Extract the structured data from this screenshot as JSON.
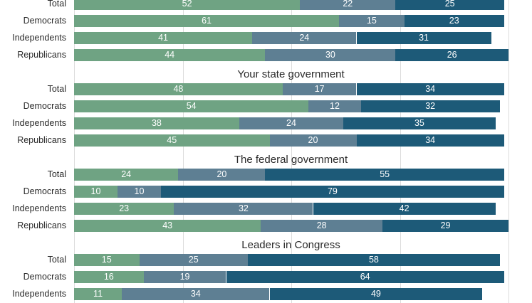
{
  "chart_data": {
    "type": "bar",
    "orientation": "horizontal",
    "stacked": true,
    "xlim": [
      0,
      100
    ],
    "grid": true,
    "series_colors": [
      "#6fa383",
      "#5e7f93",
      "#1d5a78"
    ],
    "sections": [
      {
        "title": "",
        "rows": [
          {
            "label": "Total",
            "values": [
              52,
              22,
              25
            ]
          },
          {
            "label": "Democrats",
            "values": [
              61,
              15,
              23
            ]
          },
          {
            "label": "Independents",
            "values": [
              41,
              24,
              31
            ]
          },
          {
            "label": "Republicans",
            "values": [
              44,
              30,
              26
            ]
          }
        ]
      },
      {
        "title": "Your state government",
        "rows": [
          {
            "label": "Total",
            "values": [
              48,
              17,
              34
            ]
          },
          {
            "label": "Democrats",
            "values": [
              54,
              12,
              32
            ]
          },
          {
            "label": "Independents",
            "values": [
              38,
              24,
              35
            ]
          },
          {
            "label": "Republicans",
            "values": [
              45,
              20,
              34
            ]
          }
        ]
      },
      {
        "title": "The federal government",
        "rows": [
          {
            "label": "Total",
            "values": [
              24,
              20,
              55
            ]
          },
          {
            "label": "Democrats",
            "values": [
              10,
              10,
              79
            ]
          },
          {
            "label": "Independents",
            "values": [
              23,
              32,
              42
            ]
          },
          {
            "label": "Republicans",
            "values": [
              43,
              28,
              29
            ]
          }
        ]
      },
      {
        "title": "Leaders in Congress",
        "rows": [
          {
            "label": "Total",
            "values": [
              15,
              25,
              58
            ]
          },
          {
            "label": "Democrats",
            "values": [
              16,
              19,
              64
            ]
          },
          {
            "label": "Independents",
            "values": [
              11,
              34,
              49
            ]
          }
        ]
      }
    ]
  }
}
